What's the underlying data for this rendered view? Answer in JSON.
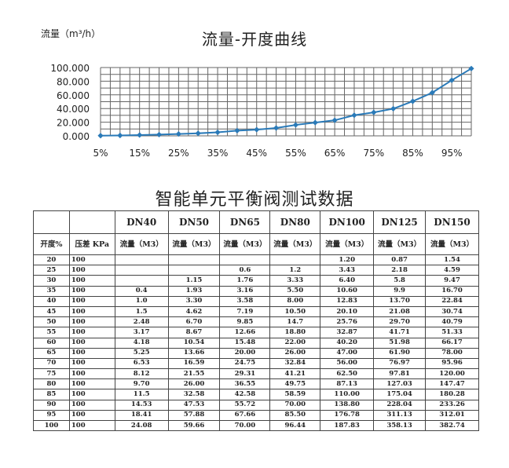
{
  "chart": {
    "unit_label": "流量（m³/h）",
    "title": "流量-开度曲线"
  },
  "chart_data": {
    "type": "line",
    "title": "流量-开度曲线",
    "ylabel": "流量（m³/h）",
    "xlabel": "",
    "x": [
      5,
      10,
      15,
      20,
      25,
      30,
      35,
      40,
      45,
      50,
      55,
      60,
      65,
      70,
      75,
      80,
      85,
      90,
      95,
      100
    ],
    "x_tick_labels": [
      "5%",
      "15%",
      "25%",
      "35%",
      "45%",
      "55%",
      "65%",
      "75%",
      "85%",
      "95%"
    ],
    "x_ticks": [
      5,
      15,
      25,
      35,
      45,
      55,
      65,
      75,
      85,
      95
    ],
    "y_tick_labels": [
      "0.000",
      "20.000",
      "40.000",
      "60.000",
      "80.000",
      "100.000"
    ],
    "ylim": [
      0,
      100
    ],
    "grid": true,
    "color": "#2a7ab8",
    "series": [
      {
        "values": [
          0.3,
          0.6,
          1.2,
          1.8,
          2.8,
          3.7,
          5.2,
          7.6,
          9.1,
          11.5,
          16.0,
          19.4,
          22.8,
          30.2,
          34.3,
          39.7,
          50.6,
          63.2,
          81.4,
          98.5
        ]
      }
    ]
  },
  "table": {
    "title": "智能单元平衡阀测试数据",
    "models": [
      "DN40",
      "DN50",
      "DN65",
      "DN80",
      "DN100",
      "DN125",
      "DN150"
    ],
    "col_open": "开度%",
    "col_diff": "压差 KPa",
    "col_flow": "流量（M3）",
    "rows": [
      [
        "20",
        "100",
        "",
        "",
        "",
        "",
        "1.20",
        "0.87",
        "1.54"
      ],
      [
        "25",
        "100",
        "",
        "",
        "0.6",
        "1.2",
        "3.43",
        "2.18",
        "4.59"
      ],
      [
        "30",
        "100",
        "",
        "1.15",
        "1.76",
        "3.33",
        "6.40",
        "5.8",
        "9.47"
      ],
      [
        "35",
        "100",
        "0.4",
        "1.93",
        "3.16",
        "5.50",
        "10.60",
        "9.9",
        "16.70"
      ],
      [
        "40",
        "100",
        "1.0",
        "3.30",
        "3.58",
        "8.00",
        "12.83",
        "13.70",
        "22.84"
      ],
      [
        "45",
        "100",
        "1.5",
        "4.62",
        "7.19",
        "10.50",
        "20.10",
        "21.08",
        "30.74"
      ],
      [
        "50",
        "100",
        "2.48",
        "6.70",
        "9.85",
        "14.7",
        "25.76",
        "29.70",
        "40.79"
      ],
      [
        "55",
        "100",
        "3.17",
        "8.67",
        "12.66",
        "18.80",
        "32.87",
        "41.71",
        "51.33"
      ],
      [
        "60",
        "100",
        "4.18",
        "10.54",
        "15.48",
        "22.00",
        "40.20",
        "51.98",
        "66.17"
      ],
      [
        "65",
        "100",
        "5.25",
        "13.66",
        "20.00",
        "26.00",
        "47.00",
        "61.90",
        "78.00"
      ],
      [
        "70",
        "100",
        "6.53",
        "16.59",
        "24.75",
        "32.84",
        "56.00",
        "76.97",
        "95.96"
      ],
      [
        "75",
        "100",
        "8.12",
        "21.55",
        "29.31",
        "41.21",
        "62.50",
        "97.81",
        "120.00"
      ],
      [
        "80",
        "100",
        "9.70",
        "26.00",
        "36.55",
        "49.75",
        "87.13",
        "127.03",
        "147.47"
      ],
      [
        "85",
        "100",
        "11.5",
        "32.58",
        "42.58",
        "58.59",
        "110.00",
        "175.04",
        "180.28"
      ],
      [
        "90",
        "100",
        "14.53",
        "47.53",
        "55.72",
        "70.00",
        "138.80",
        "228.04",
        "233.26"
      ],
      [
        "95",
        "100",
        "18.41",
        "57.88",
        "67.66",
        "85.50",
        "176.78",
        "311.13",
        "312.01"
      ],
      [
        "100",
        "100",
        "24.08",
        "59.66",
        "70.00",
        "96.44",
        "187.83",
        "358.13",
        "382.74"
      ]
    ]
  }
}
